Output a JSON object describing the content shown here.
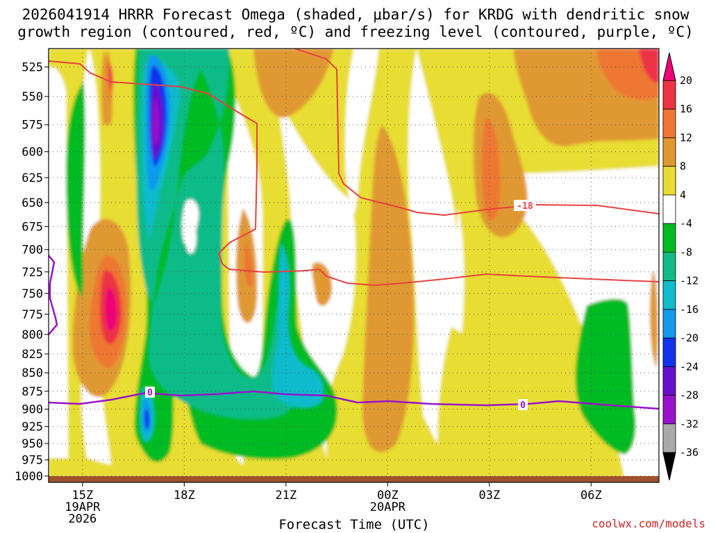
{
  "title_line1": "2026041914 HRRR Forecast Omega (shaded, μbar/s) for KRDG with dendritic snow",
  "title_line2": "growth region (contoured, red, ºC) and freezing level (contoured, purple, ºC)",
  "watermark": "coolwx.com/models",
  "chart_data": {
    "type": "heatmap",
    "xlabel": "Forecast Time (UTC)",
    "ylabel": "",
    "x_ticks": [
      {
        "hour": 15,
        "label": "15Z",
        "sub1": "19APR",
        "sub2": "2026"
      },
      {
        "hour": 18,
        "label": "18Z",
        "sub1": "",
        "sub2": ""
      },
      {
        "hour": 21,
        "label": "21Z",
        "sub1": "",
        "sub2": ""
      },
      {
        "hour": 24,
        "label": "00Z",
        "sub1": "20APR",
        "sub2": ""
      },
      {
        "hour": 27,
        "label": "03Z",
        "sub1": "",
        "sub2": ""
      },
      {
        "hour": 30,
        "label": "06Z",
        "sub1": "",
        "sub2": ""
      }
    ],
    "xlim": [
      14,
      32
    ],
    "y_ticks": [
      525,
      550,
      575,
      600,
      625,
      650,
      675,
      700,
      725,
      750,
      775,
      800,
      825,
      850,
      875,
      900,
      925,
      950,
      975,
      1000
    ],
    "ylim": [
      1010,
      510
    ],
    "y_scale": "log-pressure",
    "grid": true,
    "colorbar": {
      "labels": [
        20,
        16,
        12,
        8,
        4,
        -4,
        -8,
        -12,
        -16,
        -20,
        -24,
        -28,
        -32,
        -36
      ],
      "colors": [
        "#ee0077",
        "#ee3344",
        "#ee7733",
        "#e09930",
        "#e8dd30",
        "#ffffff",
        "#00bb22",
        "#11bb88",
        "#11bbcc",
        "#1199ee",
        "#1133ee",
        "#6611cc",
        "#9911cc",
        "#aaaaaa",
        "#000000"
      ]
    },
    "contours": [
      {
        "kind": "dendritic",
        "color": "#e84040",
        "label": "-18"
      },
      {
        "kind": "freezing",
        "color": "#9911cc",
        "label": "0"
      }
    ]
  }
}
